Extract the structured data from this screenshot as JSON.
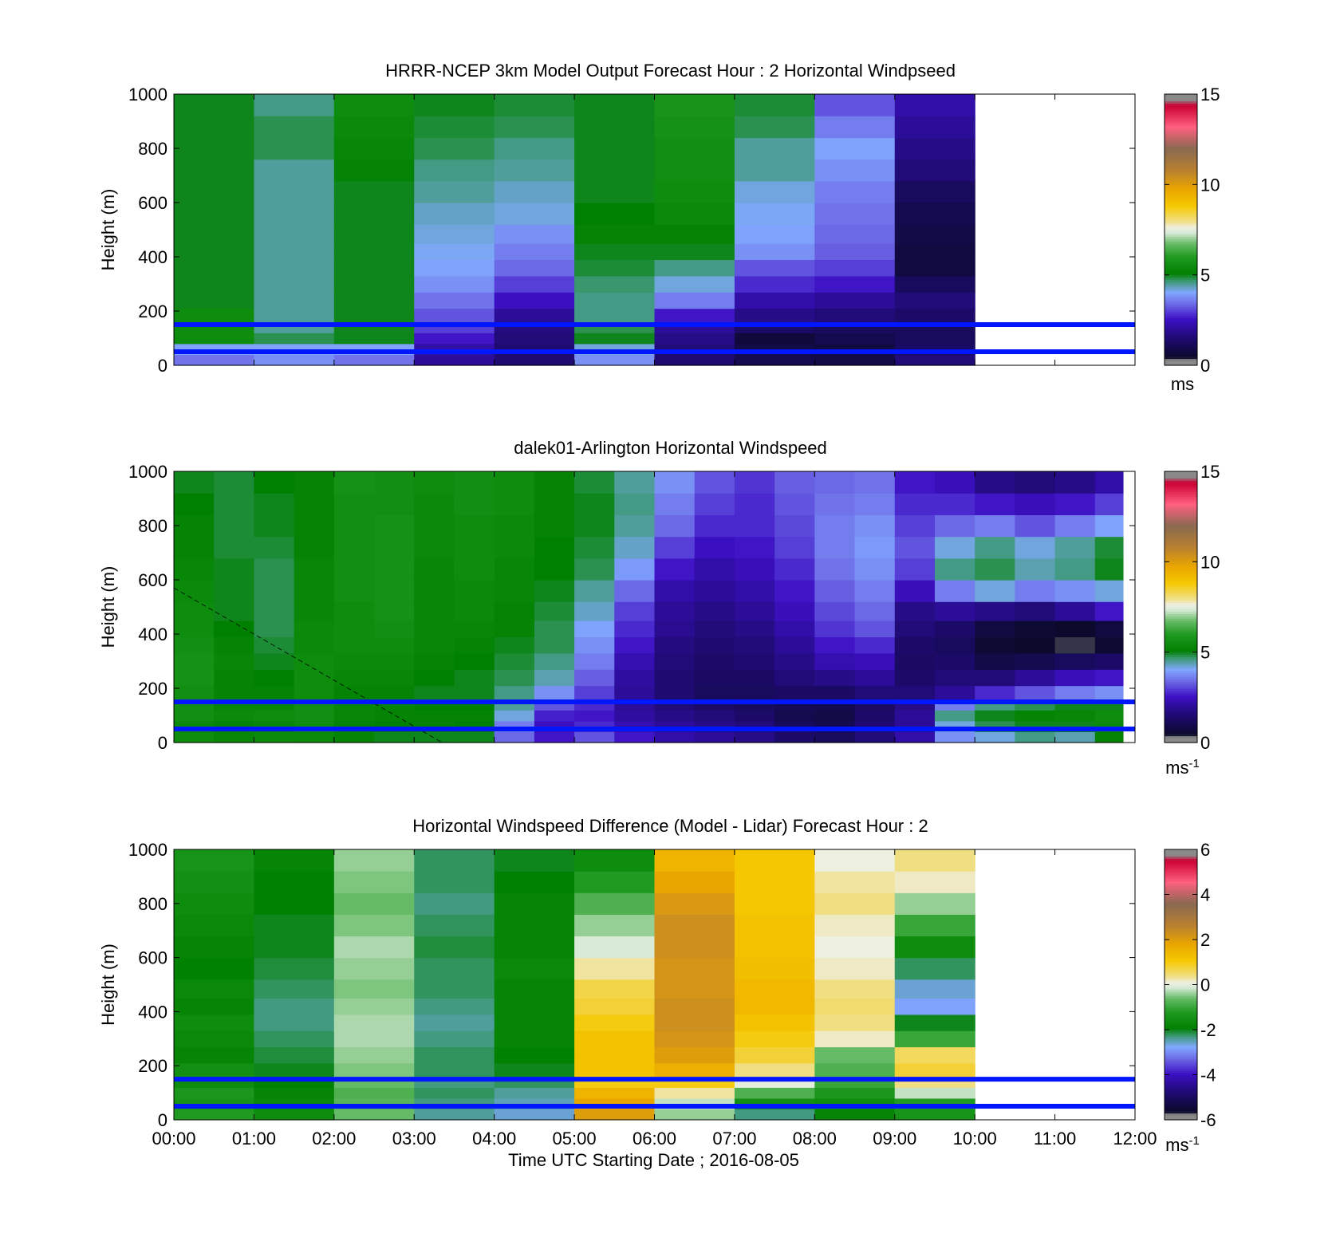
{
  "figure": {
    "xlabel": "Time UTC  Starting Date ; 2016-08-05",
    "x_ticklabels": [
      "00:00",
      "01:00",
      "02:00",
      "03:00",
      "04:00",
      "05:00",
      "06:00",
      "07:00",
      "08:00",
      "09:00",
      "10:00",
      "11:00",
      "12:00"
    ]
  },
  "chart_data": [
    {
      "type": "heatmap",
      "title": "HRRR-NCEP 3km Model Output   Forecast Hour : 2 Horizontal Windpseed",
      "ylabel": "Height (m)",
      "xlim": [
        "00:00",
        "12:00"
      ],
      "ylim": [
        0,
        1000
      ],
      "yticks": [
        0,
        200,
        400,
        600,
        800,
        1000
      ],
      "colorbar": {
        "ticks": [
          0,
          5,
          10,
          15
        ],
        "unit": "ms",
        "unit_sup": "",
        "range": [
          0,
          15
        ]
      },
      "reference_lines_m": [
        150,
        50
      ],
      "reference_line_color": "#0016ff",
      "data_end_hour": 10,
      "hours": [
        0.5,
        1.5,
        2.5,
        3.5,
        4.5,
        5.5,
        6.5,
        7.5,
        8.5,
        9.5
      ],
      "heights_m": [
        20,
        60,
        100,
        140,
        180,
        240,
        300,
        360,
        420,
        480,
        560,
        640,
        720,
        800,
        880,
        960
      ],
      "values": [
        [
          3.5,
          4.0,
          5.5,
          5.5,
          5.5,
          5.0,
          5.0,
          5.0,
          5.0,
          5.0,
          5.0,
          5.0,
          5.0,
          5.0,
          5.0,
          5.0
        ],
        [
          3.8,
          4.0,
          4.8,
          4.5,
          4.5,
          4.5,
          4.5,
          4.5,
          4.5,
          4.5,
          4.5,
          4.5,
          4.5,
          4.8,
          4.8,
          4.6
        ],
        [
          3.5,
          4.0,
          5.0,
          5.0,
          5.0,
          5.0,
          5.0,
          5.0,
          5.0,
          5.0,
          5.0,
          5.0,
          5.2,
          5.3,
          5.4,
          5.5
        ],
        [
          2.0,
          2.2,
          2.6,
          3.0,
          3.2,
          3.5,
          3.8,
          4.0,
          4.1,
          4.2,
          4.3,
          4.5,
          4.6,
          4.8,
          4.9,
          5.0
        ],
        [
          1.5,
          1.5,
          1.6,
          1.7,
          2.0,
          2.5,
          3.0,
          3.4,
          3.6,
          3.8,
          4.2,
          4.3,
          4.5,
          4.6,
          4.8,
          4.9
        ],
        [
          3.8,
          4.2,
          5.0,
          4.8,
          4.6,
          4.6,
          4.7,
          4.9,
          5.0,
          5.2,
          5.1,
          5.0,
          5.0,
          5.0,
          5.0,
          5.0
        ],
        [
          1.5,
          1.6,
          1.8,
          2.0,
          2.6,
          3.6,
          4.2,
          4.6,
          5.0,
          5.2,
          5.4,
          5.5,
          5.6,
          5.6,
          5.7,
          5.8
        ],
        [
          1.0,
          0.9,
          0.7,
          1.4,
          1.8,
          2.2,
          2.8,
          3.2,
          3.8,
          4.0,
          4.1,
          4.2,
          4.5,
          4.5,
          4.8,
          4.9
        ],
        [
          0.9,
          0.8,
          1.0,
          1.2,
          1.6,
          2.0,
          2.6,
          3.0,
          3.3,
          3.4,
          3.5,
          3.6,
          3.8,
          4.0,
          3.6,
          3.2
        ],
        [
          1.6,
          1.3,
          1.2,
          1.2,
          1.4,
          1.6,
          1.2,
          0.8,
          0.8,
          0.9,
          1.0,
          1.2,
          1.6,
          1.8,
          2.0,
          2.2
        ]
      ]
    },
    {
      "type": "heatmap",
      "title": "dalek01-Arlington  Horizontal Windspeed",
      "ylabel": "Height (m)",
      "xlim": [
        "00:00",
        "12:00"
      ],
      "ylim": [
        0,
        1000
      ],
      "yticks": [
        0,
        200,
        400,
        600,
        800,
        1000
      ],
      "colorbar": {
        "ticks": [
          0,
          5,
          10,
          15
        ],
        "unit": "ms",
        "unit_sup": "-1",
        "range": [
          0,
          15
        ]
      },
      "reference_lines_m": [
        150,
        50
      ],
      "reference_line_color": "#0016ff",
      "data_end_hour": 11.85,
      "hours": [
        0.25,
        0.75,
        1.25,
        1.75,
        2.25,
        2.75,
        3.25,
        3.75,
        4.25,
        4.75,
        5.25,
        5.75,
        6.25,
        6.75,
        7.25,
        7.75,
        8.25,
        8.75,
        9.25,
        9.75,
        10.25,
        10.75,
        11.25,
        11.75
      ],
      "heights_m": [
        20,
        60,
        100,
        140,
        180,
        240,
        300,
        360,
        420,
        480,
        560,
        640,
        720,
        800,
        880,
        960
      ],
      "values": [
        [
          5.5,
          5.4,
          5.6,
          5.6,
          5.6,
          5.7,
          5.7,
          5.6,
          5.5,
          5.5,
          5.4,
          5.3,
          5.2,
          5.2,
          5.1,
          5.0
        ],
        [
          5.3,
          5.2,
          5.4,
          5.3,
          5.2,
          5.2,
          5.3,
          5.2,
          5.1,
          5.0,
          5.0,
          5.0,
          4.9,
          4.9,
          4.9,
          4.9
        ],
        [
          5.4,
          5.3,
          5.5,
          5.3,
          5.2,
          5.1,
          5.0,
          4.9,
          4.8,
          4.8,
          4.8,
          4.8,
          4.9,
          5.0,
          5.0,
          5.1
        ],
        [
          5.4,
          5.5,
          5.6,
          5.6,
          5.5,
          5.5,
          5.5,
          5.4,
          5.4,
          5.3,
          5.3,
          5.3,
          5.2,
          5.2,
          5.2,
          5.2
        ],
        [
          5.2,
          5.2,
          5.3,
          5.3,
          5.2,
          5.3,
          5.4,
          5.5,
          5.5,
          5.5,
          5.6,
          5.6,
          5.6,
          5.6,
          5.6,
          5.7
        ],
        [
          5.0,
          5.1,
          5.2,
          5.2,
          5.2,
          5.3,
          5.4,
          5.5,
          5.6,
          5.7,
          5.7,
          5.7,
          5.7,
          5.7,
          5.6,
          5.6
        ],
        [
          5.0,
          5.2,
          5.2,
          5.1,
          5.0,
          5.1,
          5.2,
          5.3,
          5.3,
          5.3,
          5.3,
          5.3,
          5.4,
          5.4,
          5.4,
          5.5
        ],
        [
          5.0,
          5.1,
          5.2,
          5.1,
          5.0,
          5.0,
          5.1,
          5.2,
          5.3,
          5.4,
          5.4,
          5.5,
          5.5,
          5.5,
          5.6,
          5.6
        ],
        [
          3.4,
          3.6,
          4.2,
          4.5,
          4.6,
          4.8,
          4.9,
          5.0,
          5.2,
          5.2,
          5.3,
          5.3,
          5.4,
          5.4,
          5.5,
          5.5
        ],
        [
          2.6,
          2.5,
          2.7,
          3.2,
          3.8,
          4.4,
          4.6,
          4.8,
          4.8,
          4.9,
          5.0,
          5.1,
          5.1,
          5.2,
          5.2,
          5.2
        ],
        [
          3.2,
          2.8,
          2.6,
          2.8,
          3.0,
          3.3,
          3.6,
          3.8,
          4.0,
          4.3,
          4.5,
          4.8,
          4.9,
          5.0,
          5.0,
          4.9
        ],
        [
          2.6,
          2.3,
          2.1,
          2.0,
          2.0,
          2.1,
          2.3,
          2.6,
          2.8,
          3.0,
          3.4,
          3.9,
          4.3,
          4.5,
          4.6,
          4.5
        ],
        [
          2.2,
          2.0,
          1.8,
          1.6,
          1.5,
          1.5,
          1.6,
          1.7,
          1.9,
          2.0,
          2.2,
          2.6,
          3.0,
          3.4,
          3.6,
          3.8
        ],
        [
          2.0,
          1.8,
          1.6,
          1.4,
          1.2,
          1.3,
          1.4,
          1.5,
          1.6,
          1.8,
          2.0,
          2.2,
          2.5,
          2.8,
          3.0,
          3.2
        ],
        [
          1.8,
          1.6,
          1.4,
          1.2,
          1.2,
          1.3,
          1.5,
          1.6,
          1.8,
          2.0,
          2.2,
          2.4,
          2.6,
          2.8,
          2.8,
          2.9
        ],
        [
          1.4,
          1.2,
          1.0,
          1.1,
          1.3,
          1.6,
          1.8,
          2.0,
          2.2,
          2.4,
          2.6,
          2.8,
          3.0,
          3.1,
          3.2,
          3.3
        ],
        [
          1.2,
          1.0,
          0.9,
          1.0,
          1.3,
          1.8,
          2.3,
          2.6,
          2.9,
          3.1,
          3.3,
          3.5,
          3.6,
          3.6,
          3.5,
          3.4
        ],
        [
          1.6,
          1.5,
          1.4,
          1.3,
          1.6,
          2.0,
          2.4,
          2.8,
          3.2,
          3.4,
          3.6,
          3.8,
          3.9,
          3.8,
          3.6,
          3.5
        ],
        [
          2.2,
          2.0,
          2.0,
          1.8,
          1.6,
          1.4,
          1.3,
          1.4,
          1.6,
          1.8,
          2.4,
          3.0,
          3.2,
          3.0,
          2.8,
          2.6
        ],
        [
          3.8,
          4.2,
          4.6,
          3.6,
          2.0,
          1.6,
          1.4,
          1.2,
          1.4,
          2.0,
          3.6,
          4.6,
          4.2,
          3.4,
          2.8,
          2.4
        ],
        [
          4.2,
          4.8,
          5.0,
          4.6,
          2.8,
          1.6,
          0.9,
          0.6,
          0.8,
          1.8,
          4.2,
          4.8,
          4.6,
          3.6,
          2.6,
          1.8
        ],
        [
          4.6,
          5.0,
          5.2,
          4.8,
          3.2,
          2.0,
          1.0,
          0.5,
          0.6,
          1.6,
          3.6,
          4.4,
          4.2,
          3.2,
          2.4,
          1.6
        ],
        [
          4.4,
          5.0,
          5.3,
          5.0,
          3.6,
          2.4,
          1.2,
          0.4,
          0.5,
          2.0,
          3.8,
          4.6,
          4.5,
          3.6,
          2.6,
          1.8
        ],
        [
          5.2,
          5.4,
          5.5,
          5.0,
          3.8,
          2.6,
          1.4,
          0.6,
          0.8,
          2.6,
          4.2,
          5.0,
          4.9,
          4.0,
          3.0,
          2.2
        ]
      ]
    },
    {
      "type": "heatmap",
      "title": "Horizontal Windspeed Difference (Model - Lidar) Forecast Hour : 2",
      "ylabel": "Height (m)",
      "xlabel": "Time UTC  Starting Date ; 2016-08-05",
      "xlim": [
        "00:00",
        "12:00"
      ],
      "ylim": [
        0,
        1000
      ],
      "yticks": [
        0,
        200,
        400,
        600,
        800,
        1000
      ],
      "colorbar": {
        "ticks": [
          -6,
          -4,
          -2,
          0,
          2,
          4,
          6
        ],
        "unit": "ms",
        "unit_sup": "-1",
        "range": [
          -6,
          6
        ]
      },
      "reference_lines_m": [
        150,
        50
      ],
      "reference_line_color": "#0016ff",
      "data_end_hour": 10,
      "hours": [
        0.5,
        1.5,
        2.5,
        3.5,
        4.5,
        5.5,
        6.5,
        7.5,
        8.5,
        9.5
      ],
      "heights_m": [
        20,
        60,
        100,
        140,
        180,
        240,
        300,
        360,
        420,
        480,
        560,
        640,
        720,
        800,
        880,
        960
      ],
      "values": [
        [
          -1.2,
          -1.4,
          -1.3,
          -1.6,
          -1.5,
          -1.8,
          -1.7,
          -1.6,
          -1.8,
          -1.7,
          -1.9,
          -1.8,
          -1.7,
          -1.6,
          -1.5,
          -1.4
        ],
        [
          -1.6,
          -1.7,
          -1.8,
          -1.9,
          -2.0,
          -2.1,
          -2.2,
          -2.3,
          -2.3,
          -2.2,
          -2.1,
          -2.0,
          -2.0,
          -1.9,
          -1.9,
          -1.8
        ],
        [
          -0.6,
          -0.7,
          -0.8,
          -0.6,
          -0.5,
          -0.4,
          -0.3,
          -0.3,
          -0.4,
          -0.5,
          -0.4,
          -0.3,
          -0.5,
          -0.6,
          -0.5,
          -0.4
        ],
        [
          -2.4,
          -2.3,
          -2.2,
          -2.3,
          -2.2,
          -2.2,
          -2.3,
          -2.4,
          -2.3,
          -2.2,
          -2.2,
          -2.1,
          -2.2,
          -2.3,
          -2.2,
          -2.2
        ],
        [
          -2.6,
          -2.5,
          -2.4,
          -2.2,
          -2.0,
          -1.9,
          -1.8,
          -1.8,
          -1.8,
          -1.8,
          -1.7,
          -1.8,
          -1.8,
          -1.8,
          -1.9,
          -2.0
        ],
        [
          2.0,
          1.8,
          1.5,
          1.0,
          1.2,
          1.2,
          1.2,
          1.0,
          0.8,
          0.7,
          0.3,
          -0.1,
          -0.4,
          -0.8,
          -1.2,
          -1.6
        ],
        [
          -0.4,
          -0.2,
          0.3,
          1.0,
          1.6,
          2.0,
          2.2,
          2.3,
          2.3,
          2.2,
          2.2,
          2.3,
          2.3,
          2.1,
          1.8,
          1.5
        ],
        [
          -2.3,
          -1.5,
          -0.8,
          0.0,
          0.4,
          0.8,
          1.0,
          1.2,
          1.4,
          1.4,
          1.3,
          1.2,
          1.2,
          1.1,
          1.1,
          1.1
        ],
        [
          -1.8,
          -1.6,
          -1.3,
          -1.0,
          -0.8,
          -0.6,
          0.2,
          0.4,
          0.5,
          0.4,
          0.2,
          0.1,
          0.2,
          0.4,
          0.3,
          0.1
        ],
        [
          -1.4,
          -1.2,
          -0.2,
          0.4,
          0.8,
          0.6,
          -1.0,
          -2.0,
          -2.8,
          -2.6,
          -2.2,
          -1.6,
          -1.0,
          -0.4,
          0.2,
          0.4
        ]
      ]
    }
  ]
}
